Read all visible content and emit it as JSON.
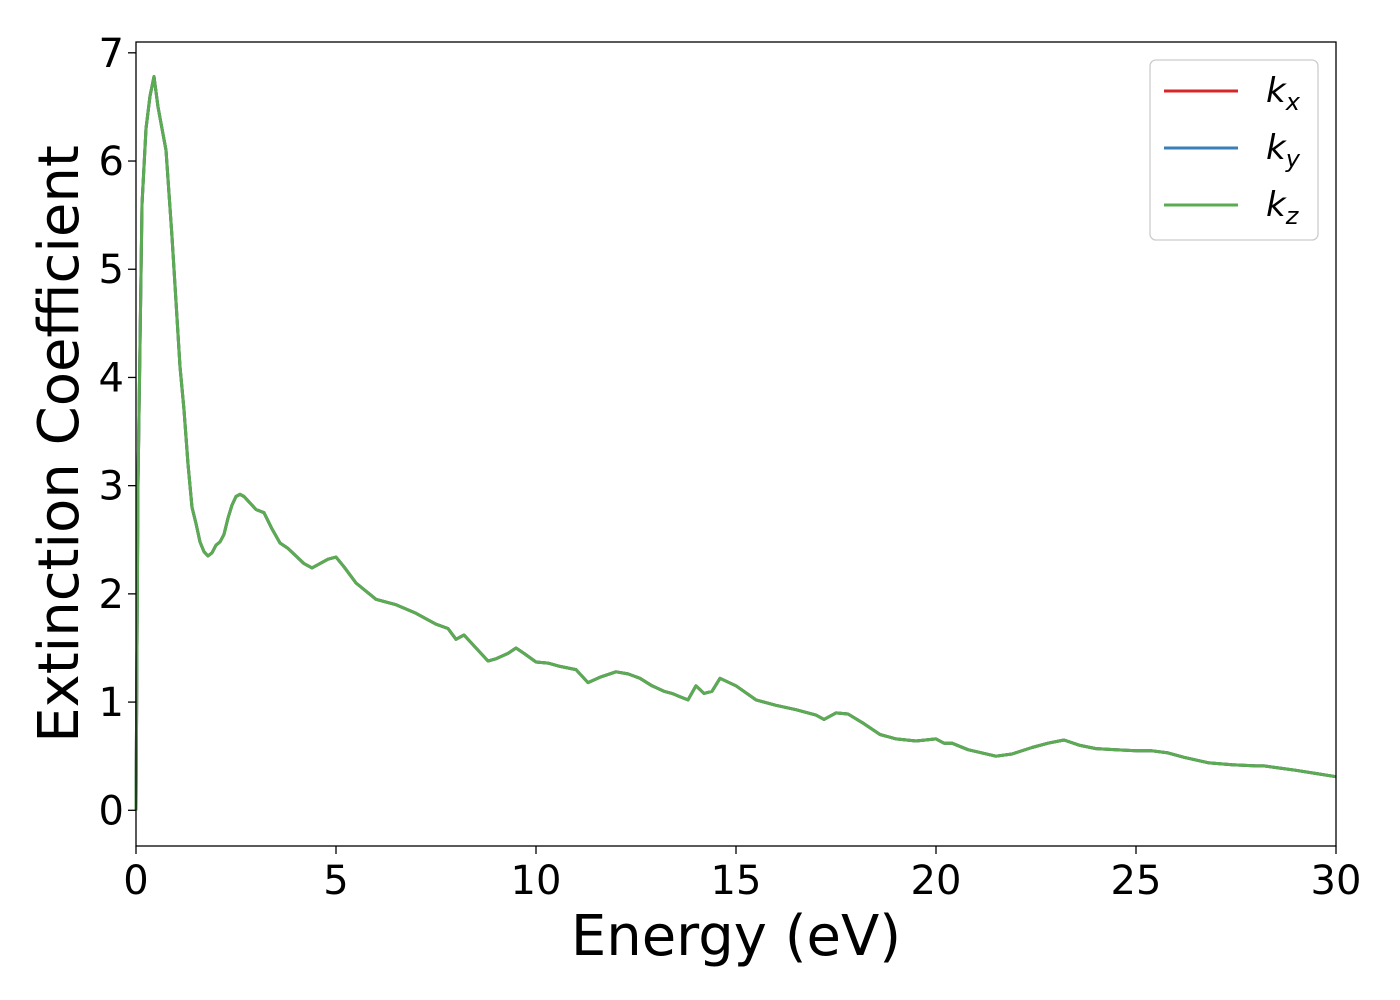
{
  "chart_data": {
    "type": "line",
    "title": "",
    "xlabel": "Energy (eV)",
    "ylabel": "Extinction Coefficient",
    "xlim": [
      0,
      30
    ],
    "ylim": [
      -0.33,
      7.1
    ],
    "xticks": [
      "0",
      "5",
      "10",
      "15",
      "20",
      "25",
      "30"
    ],
    "yticks": [
      "0",
      "1",
      "2",
      "3",
      "4",
      "5",
      "6",
      "7"
    ],
    "grid": false,
    "legend_position": "top-right",
    "series": [
      {
        "name": "k",
        "subscript": "x",
        "color": "#d62728"
      },
      {
        "name": "k",
        "subscript": "y",
        "color": "#3a7fb8"
      },
      {
        "name": "k",
        "subscript": "z",
        "color": "#5aab52"
      }
    ],
    "x": [
      0,
      0.05,
      0.15,
      0.25,
      0.35,
      0.45,
      0.55,
      0.65,
      0.75,
      0.9,
      1.0,
      1.1,
      1.2,
      1.3,
      1.4,
      1.5,
      1.6,
      1.7,
      1.8,
      1.9,
      2.0,
      2.1,
      2.2,
      2.3,
      2.4,
      2.5,
      2.6,
      2.7,
      2.8,
      2.9,
      3.0,
      3.2,
      3.4,
      3.6,
      3.8,
      4.0,
      4.2,
      4.4,
      4.6,
      4.8,
      5.0,
      5.2,
      5.5,
      6.0,
      6.5,
      7.0,
      7.2,
      7.5,
      7.8,
      8.0,
      8.2,
      8.5,
      8.8,
      9.0,
      9.3,
      9.5,
      9.7,
      10.0,
      10.3,
      10.6,
      11.0,
      11.3,
      11.6,
      12.0,
      12.3,
      12.6,
      12.9,
      13.2,
      13.4,
      13.6,
      13.8,
      14.0,
      14.2,
      14.4,
      14.6,
      15.0,
      15.5,
      16.0,
      16.5,
      17.0,
      17.2,
      17.5,
      17.8,
      18.2,
      18.6,
      19.0,
      19.5,
      20.0,
      20.2,
      20.4,
      20.8,
      21.5,
      21.9,
      22.4,
      22.8,
      23.2,
      23.6,
      24.0,
      24.5,
      25.0,
      25.4,
      25.8,
      26.2,
      26.8,
      27.4,
      28.0,
      28.2,
      28.6,
      29.0,
      29.5,
      30.0
    ],
    "values": [
      0.0,
      3.0,
      5.6,
      6.3,
      6.6,
      6.78,
      6.5,
      6.3,
      6.1,
      5.3,
      4.7,
      4.1,
      3.7,
      3.2,
      2.8,
      2.65,
      2.48,
      2.39,
      2.35,
      2.38,
      2.45,
      2.48,
      2.55,
      2.7,
      2.82,
      2.9,
      2.92,
      2.9,
      2.86,
      2.82,
      2.78,
      2.75,
      2.6,
      2.47,
      2.42,
      2.35,
      2.28,
      2.24,
      2.28,
      2.32,
      2.34,
      2.25,
      2.1,
      1.95,
      1.9,
      1.82,
      1.78,
      1.72,
      1.68,
      1.58,
      1.62,
      1.5,
      1.38,
      1.4,
      1.45,
      1.5,
      1.45,
      1.37,
      1.36,
      1.33,
      1.3,
      1.18,
      1.23,
      1.28,
      1.26,
      1.22,
      1.15,
      1.1,
      1.08,
      1.05,
      1.02,
      1.15,
      1.08,
      1.1,
      1.22,
      1.15,
      1.02,
      0.97,
      0.93,
      0.88,
      0.84,
      0.9,
      0.89,
      0.8,
      0.7,
      0.66,
      0.64,
      0.66,
      0.62,
      0.62,
      0.56,
      0.5,
      0.52,
      0.58,
      0.62,
      0.65,
      0.6,
      0.57,
      0.56,
      0.55,
      0.55,
      0.53,
      0.49,
      0.44,
      0.42,
      0.41,
      0.41,
      0.39,
      0.37,
      0.34,
      0.31
    ]
  }
}
